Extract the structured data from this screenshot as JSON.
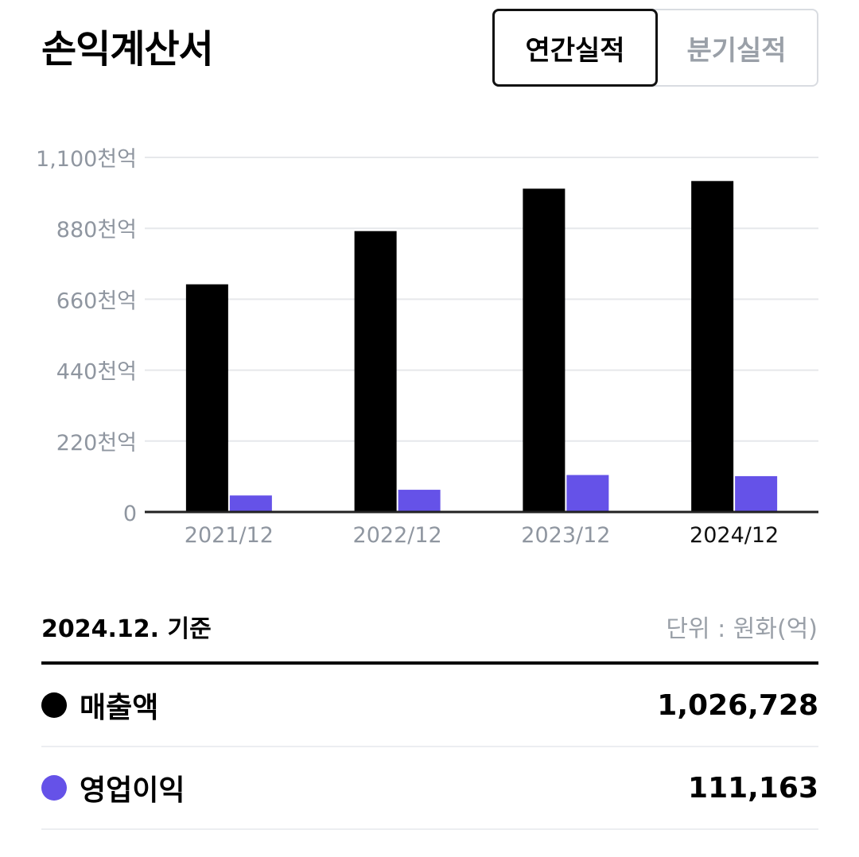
{
  "header": {
    "title": "손익계산서",
    "tabs": [
      {
        "label": "연간실적",
        "active": true
      },
      {
        "label": "분기실적",
        "active": false
      }
    ]
  },
  "chart_data": {
    "type": "bar",
    "categories": [
      "2021/12",
      "2022/12",
      "2023/12",
      "2024/12"
    ],
    "highlight_category": "2024/12",
    "series": [
      {
        "name": "매출액",
        "color": "#000000",
        "values": [
          706300,
          871400,
          1003000,
          1026728
        ]
      },
      {
        "name": "영업이익",
        "color": "#6552E8",
        "values": [
          51200,
          68900,
          114700,
          111163
        ]
      }
    ],
    "ylim": [
      0,
      1100000
    ],
    "yticks": [
      0,
      220000,
      440000,
      660000,
      880000,
      1100000
    ],
    "ytick_labels": [
      "0",
      "220천억",
      "440천억",
      "660천억",
      "880천억",
      "1,100천억"
    ],
    "grid": true,
    "legend": "none"
  },
  "summary": {
    "basis": "2024.12. 기준",
    "unit": "단위 : 원화(억)",
    "rows": [
      {
        "label": "매출액",
        "value": "1,026,728",
        "color": "#000000"
      },
      {
        "label": "영업이익",
        "value": "111,163",
        "color": "#6552E8"
      }
    ]
  }
}
